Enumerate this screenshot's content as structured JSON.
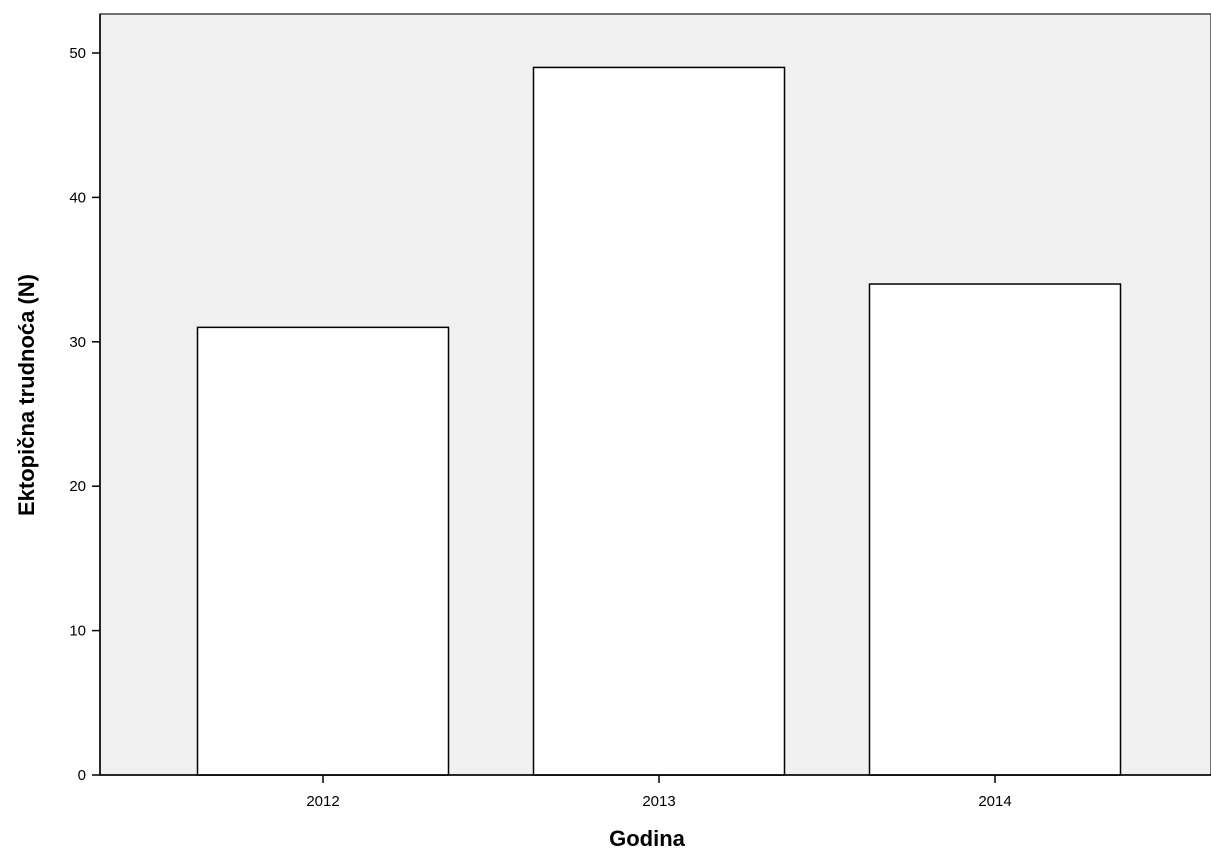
{
  "chart_data": {
    "type": "bar",
    "title": "",
    "xlabel": "Godina",
    "ylabel": "Ektopična trudnoća (N)",
    "categories": [
      "2012",
      "2013",
      "2014"
    ],
    "values": [
      31,
      49,
      34
    ],
    "ylim": [
      0,
      52.7
    ],
    "yticks": [
      0,
      10,
      20,
      30,
      40,
      50
    ],
    "grid": false,
    "legend": "none",
    "colors": {
      "plot_background": "#f0f0f0",
      "bar_fill": "#ffffff",
      "bar_stroke": "#000000"
    }
  }
}
